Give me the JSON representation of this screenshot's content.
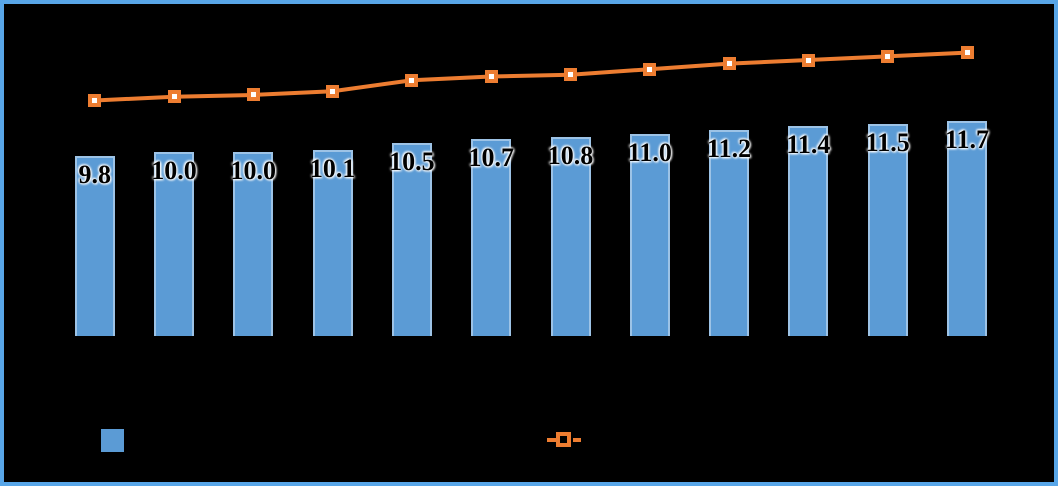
{
  "colors": {
    "frame_border": "#58A6E8",
    "background": "#000000",
    "bar_fill": "#5B9BD5",
    "bar_border": "#9DC3E6",
    "line": "#ED7D31",
    "marker_fill": "#FFFFFF",
    "label_text": "#000000",
    "label_halo": "#FFFFFF"
  },
  "chart_data": {
    "type": "bar",
    "title": "",
    "xlabel": "",
    "ylabel": "",
    "categories": [
      "",
      "",
      "",
      "",
      "",
      "",
      "",
      "",
      "",
      "",
      "",
      ""
    ],
    "series": [
      {
        "name": "",
        "type": "bar",
        "values": [
          9.8,
          10.0,
          10.0,
          10.1,
          10.5,
          10.7,
          10.8,
          11.0,
          11.2,
          11.4,
          11.5,
          11.7
        ],
        "data_labels": [
          "9.8",
          "10.0",
          "10.0",
          "10.1",
          "10.5",
          "10.7",
          "10.8",
          "11.0",
          "11.2",
          "11.4",
          "11.5",
          "11.7"
        ],
        "color": "#5B9BD5"
      },
      {
        "name": "",
        "type": "line",
        "values": [
          12.8,
          13.0,
          13.1,
          13.3,
          13.9,
          14.1,
          14.2,
          14.5,
          14.8,
          15.0,
          15.2,
          15.4
        ],
        "values_note": "estimated from marker positions; no numeric labels visible",
        "color": "#ED7D31",
        "marker": "square-white-center"
      }
    ],
    "ylim": [
      0,
      18
    ],
    "grid": false,
    "legend_position": "bottom",
    "legend": {
      "items": [
        {
          "swatch": "blue-square",
          "label": ""
        },
        {
          "swatch": "orange-dash-square-dash",
          "label": ""
        }
      ]
    }
  }
}
